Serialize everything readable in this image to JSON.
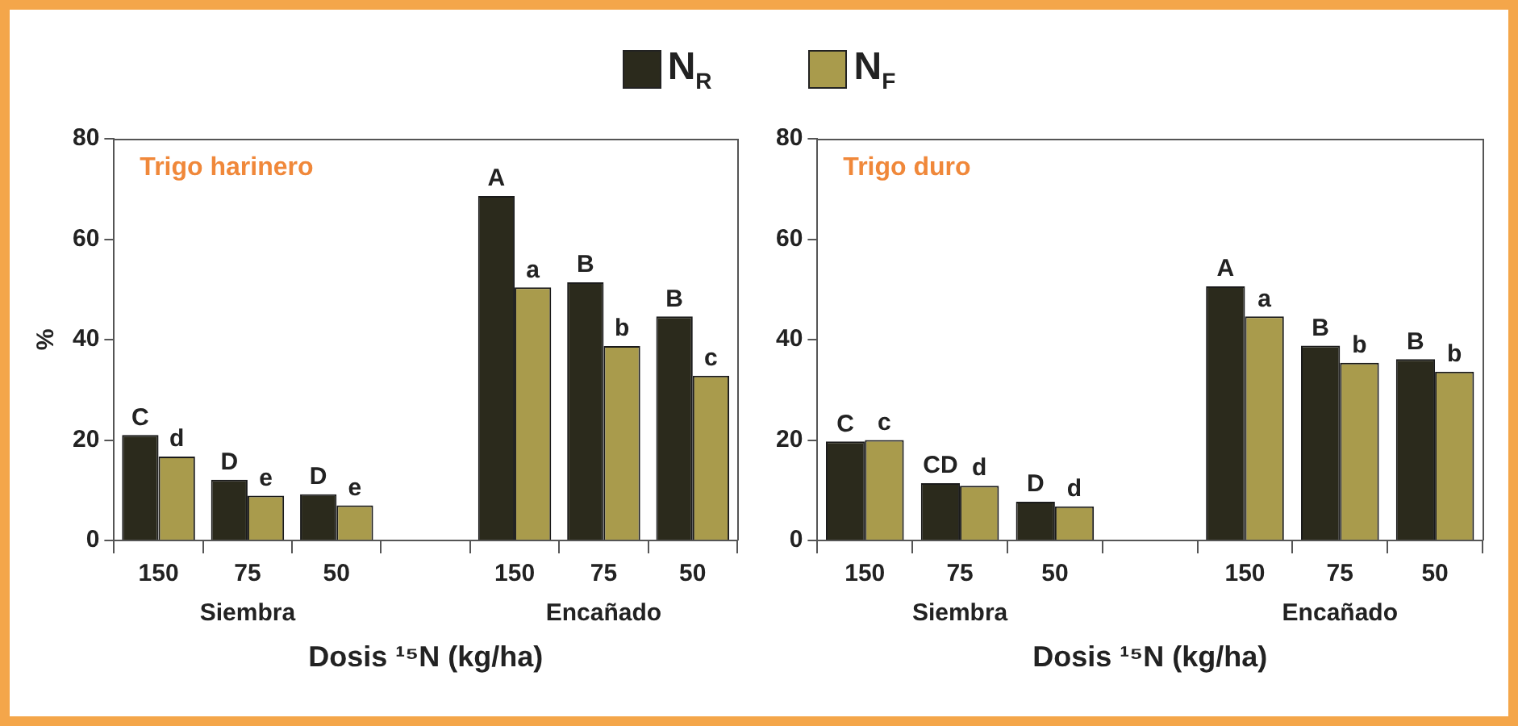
{
  "chart_data": [
    {
      "type": "bar",
      "title": "Trigo harinero",
      "xlabel": "Dosis ¹⁵N (kg/ha)",
      "ylabel": "%",
      "categories": [
        "150",
        "75",
        "50",
        null,
        "150",
        "75",
        "50"
      ],
      "series": [
        {
          "name": "N$_{R}$",
          "color": "#2b2a1c",
          "values": [
            21,
            12.1,
            9.2,
            null,
            68.6,
            51.4,
            44.6
          ],
          "value_labels": [
            "C",
            "D",
            "D",
            null,
            "A",
            "B",
            "B"
          ]
        },
        {
          "name": "N$_{F}$",
          "color": "#a99b4c",
          "values": [
            16.7,
            8.9,
            7.0,
            null,
            50.4,
            38.7,
            32.8
          ],
          "value_labels": [
            "d",
            "e",
            "e",
            null,
            "a",
            "b",
            "c"
          ]
        }
      ],
      "annotations": [
        "Siembra",
        "Encañado"
      ],
      "ylim": [
        0,
        80
      ],
      "yticks": [
        0,
        20,
        40,
        60,
        80
      ],
      "grid": false,
      "legend": "top"
    },
    {
      "type": "bar",
      "title": "Trigo duro",
      "xlabel": "Dosis ¹⁵N (kg/ha)",
      "categories": [
        "150",
        "75",
        "50",
        null,
        "150",
        "75",
        "50"
      ],
      "series": [
        {
          "color": "#2b2a1c",
          "values": [
            19.7,
            11.4,
            7.7,
            null,
            50.6,
            38.8,
            36.1
          ],
          "value_labels": [
            "C",
            "CD",
            "D",
            null,
            "A",
            "B",
            "B"
          ]
        },
        {
          "color": "#a99b4c",
          "values": [
            20.0,
            10.9,
            6.8,
            null,
            44.6,
            35.4,
            33.6
          ],
          "value_labels": [
            "c",
            "d",
            "d",
            null,
            "a",
            "b",
            "b"
          ]
        }
      ],
      "annotations": [
        "Siembra",
        "Encañado"
      ],
      "ylim": [
        0,
        80
      ],
      "yticks": [
        0,
        20,
        40,
        60,
        80
      ],
      "grid": false,
      "legend": false
    }
  ]
}
